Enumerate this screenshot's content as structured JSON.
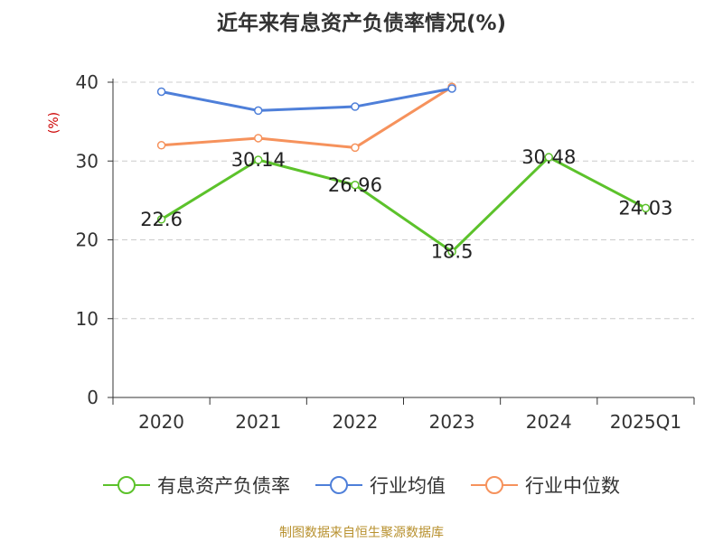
{
  "chart_data": {
    "type": "line",
    "title": "近年来有息资产负债率情况(%)",
    "ylabel": "(%)",
    "categories": [
      "2020",
      "2021",
      "2022",
      "2023",
      "2024",
      "2025Q1"
    ],
    "ylim": [
      0,
      40
    ],
    "yticks": [
      0,
      10,
      20,
      30,
      40
    ],
    "grid": true,
    "legend_position": "bottom",
    "series": [
      {
        "name": "有息资产负债率",
        "color": "#5cc22b",
        "values": [
          22.6,
          30.14,
          26.96,
          18.5,
          30.48,
          24.03
        ],
        "labels": [
          "22.6",
          "30.14",
          "26.96",
          "18.5",
          "30.48",
          "24.03"
        ]
      },
      {
        "name": "行业均值",
        "color": "#4e7fd9",
        "values": [
          38.8,
          36.4,
          36.9,
          39.2,
          null,
          null
        ]
      },
      {
        "name": "行业中位数",
        "color": "#f6925c",
        "values": [
          32.0,
          32.9,
          31.7,
          39.4,
          null,
          null
        ]
      }
    ]
  },
  "footer": {
    "source": "制图数据来自恒生聚源数据库"
  }
}
